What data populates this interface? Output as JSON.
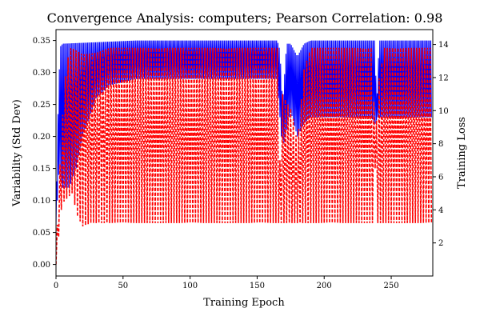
{
  "chart_data": {
    "type": "line",
    "title": "Convergence Analysis: computers; Pearson Correlation: 0.98",
    "xlabel": "Training Epoch",
    "ylabel_left": "Variability (Std Dev)",
    "ylabel_right": "Training Loss",
    "xlim": [
      0,
      281
    ],
    "ylim_left": [
      -0.018,
      0.367
    ],
    "ylim_right": [
      0,
      14.9
    ],
    "x_ticks": [
      0,
      50,
      100,
      150,
      200,
      250
    ],
    "y_left_ticks": [
      0.0,
      0.05,
      0.1,
      0.15,
      0.2,
      0.25,
      0.3,
      0.35
    ],
    "y_right_ticks": [
      2,
      4,
      6,
      8,
      10,
      12,
      14
    ],
    "grid": false,
    "legend": "none",
    "epochs": [
      0,
      280
    ],
    "series": [
      {
        "axis": "left",
        "color": "#0000ff",
        "style": "solid",
        "oscillation_period": 1,
        "upper_envelope": [
          [
            0,
            0.06
          ],
          [
            1,
            0.2
          ],
          [
            3,
            0.34
          ],
          [
            5,
            0.345
          ],
          [
            60,
            0.35
          ],
          [
            165,
            0.35
          ],
          [
            167,
            0.335
          ],
          [
            169,
            0.25
          ],
          [
            172,
            0.345
          ],
          [
            175,
            0.345
          ],
          [
            180,
            0.325
          ],
          [
            185,
            0.345
          ],
          [
            190,
            0.35
          ],
          [
            238,
            0.35
          ],
          [
            239,
            0.24
          ],
          [
            241,
            0.35
          ],
          [
            280,
            0.35
          ]
        ],
        "lower_envelope": [
          [
            0,
            0.06
          ],
          [
            2,
            0.14
          ],
          [
            5,
            0.12
          ],
          [
            10,
            0.12
          ],
          [
            15,
            0.15
          ],
          [
            20,
            0.2
          ],
          [
            30,
            0.26
          ],
          [
            40,
            0.28
          ],
          [
            60,
            0.29
          ],
          [
            150,
            0.29
          ],
          [
            165,
            0.29
          ],
          [
            168,
            0.2
          ],
          [
            170,
            0.19
          ],
          [
            175,
            0.24
          ],
          [
            180,
            0.2
          ],
          [
            185,
            0.22
          ],
          [
            190,
            0.23
          ],
          [
            235,
            0.23
          ],
          [
            238,
            0.22
          ],
          [
            240,
            0.23
          ],
          [
            245,
            0.23
          ],
          [
            280,
            0.23
          ]
        ]
      },
      {
        "axis": "right",
        "color": "#ff0000",
        "style": "dashed",
        "oscillation_period": 2,
        "upper_envelope": [
          [
            0,
            0.7
          ],
          [
            2,
            5.5
          ],
          [
            4,
            8.0
          ],
          [
            6,
            11.5
          ],
          [
            10,
            13.8
          ],
          [
            14,
            13.7
          ],
          [
            20,
            13.4
          ],
          [
            30,
            13.5
          ],
          [
            40,
            13.8
          ],
          [
            165,
            13.8
          ],
          [
            167,
            7.0
          ],
          [
            169,
            11.0
          ],
          [
            172,
            10.5
          ],
          [
            176,
            10.0
          ],
          [
            180,
            8.0
          ],
          [
            185,
            12.5
          ],
          [
            190,
            13.8
          ],
          [
            236,
            13.8
          ],
          [
            238,
            7.3
          ],
          [
            240,
            11.5
          ],
          [
            245,
            13.8
          ],
          [
            280,
            13.8
          ]
        ],
        "lower_envelope": [
          [
            0,
            0.7
          ],
          [
            4,
            4.0
          ],
          [
            6,
            4.5
          ],
          [
            12,
            5.0
          ],
          [
            16,
            3.6
          ],
          [
            20,
            3.0
          ],
          [
            26,
            3.2
          ],
          [
            30,
            3.2
          ],
          [
            40,
            3.2
          ],
          [
            165,
            3.2
          ],
          [
            170,
            3.2
          ],
          [
            200,
            3.2
          ],
          [
            236,
            3.2
          ],
          [
            238,
            6.5
          ],
          [
            240,
            3.2
          ],
          [
            280,
            3.2
          ]
        ]
      }
    ]
  }
}
